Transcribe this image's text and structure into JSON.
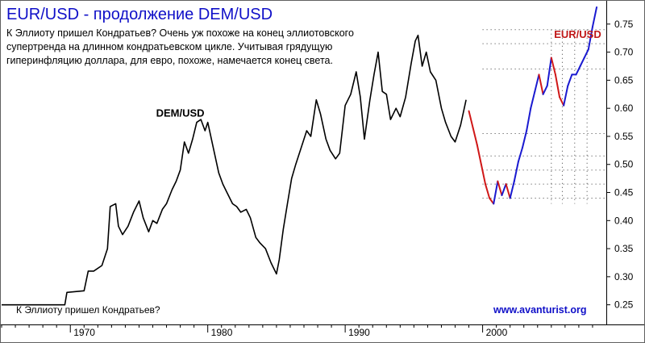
{
  "chart_data": {
    "type": "line",
    "title": "EUR/USD - продолжение DEM/USD",
    "subtitle_lines": [
      "К Эллиоту пришел Кондратьев? Очень уж похоже на конец эллиотовского",
      "супертренда на длинном кондратьевском цикле. Учитывая грядущую",
      "гиперинфляцию доллара, для евро, похоже, намечается конец света."
    ],
    "footer_text": "К Эллиоту пришел Кондратьев?",
    "source_text": "www.avanturist.org",
    "annotations": [
      {
        "text": "DEM/USD",
        "x": 1978.0,
        "y": 0.585
      },
      {
        "text": "EUR/USD",
        "x": 2005.2,
        "y": 0.725
      }
    ],
    "x_ticks": [
      {
        "label": "1970",
        "value": 1970
      },
      {
        "label": "1980",
        "value": 1980
      },
      {
        "label": "1990",
        "value": 1990
      },
      {
        "label": "2000",
        "value": 2000
      }
    ],
    "y_ticks": [
      "0.25",
      "0.30",
      "0.35",
      "0.40",
      "0.45",
      "0.50",
      "0.55",
      "0.60",
      "0.65",
      "0.70",
      "0.75"
    ],
    "xlim": [
      1965,
      2009
    ],
    "ylim": [
      0.215,
      0.79
    ],
    "grid": "dotted horizontal projection lines at the right",
    "colors": {
      "title": "#1010c8",
      "dem_series": "#000000",
      "eur_up": "#1a1ad0",
      "eur_down": "#d01818",
      "eur_label": "#c01818",
      "url": "#1010c8"
    },
    "series": [
      {
        "name": "DEM/USD",
        "x": [
          1965.0,
          1967.0,
          1969.0,
          1969.6,
          1969.75,
          1971.0,
          1971.3,
          1971.7,
          1972.3,
          1972.7,
          1972.9,
          1973.3,
          1973.5,
          1973.8,
          1974.2,
          1974.6,
          1975.0,
          1975.3,
          1975.7,
          1976.0,
          1976.3,
          1976.7,
          1977.0,
          1977.4,
          1977.7,
          1978.0,
          1978.3,
          1978.6,
          1978.9,
          1979.2,
          1979.5,
          1979.8,
          1980.0,
          1980.4,
          1980.8,
          1981.1,
          1981.4,
          1981.8,
          1982.1,
          1982.4,
          1982.8,
          1983.1,
          1983.5,
          1983.8,
          1984.2,
          1984.6,
          1985.0,
          1985.2,
          1985.5,
          1985.8,
          1986.1,
          1986.4,
          1986.8,
          1987.2,
          1987.5,
          1987.9,
          1988.2,
          1988.6,
          1988.9,
          1989.3,
          1989.6,
          1990.0,
          1990.4,
          1990.8,
          1991.1,
          1991.4,
          1991.8,
          1992.1,
          1992.4,
          1992.7,
          1993.0,
          1993.3,
          1993.7,
          1994.0,
          1994.4,
          1994.8,
          1995.1,
          1995.3,
          1995.6,
          1995.9,
          1996.2,
          1996.6,
          1997.0,
          1997.3,
          1997.7,
          1998.0,
          1998.4,
          1998.8
        ],
        "values": [
          0.25,
          0.25,
          0.25,
          0.25,
          0.272,
          0.275,
          0.31,
          0.31,
          0.32,
          0.35,
          0.425,
          0.43,
          0.39,
          0.375,
          0.39,
          0.415,
          0.435,
          0.405,
          0.38,
          0.4,
          0.395,
          0.42,
          0.43,
          0.455,
          0.47,
          0.49,
          0.54,
          0.52,
          0.545,
          0.575,
          0.58,
          0.56,
          0.575,
          0.53,
          0.485,
          0.465,
          0.45,
          0.43,
          0.425,
          0.415,
          0.42,
          0.405,
          0.37,
          0.36,
          0.35,
          0.325,
          0.305,
          0.33,
          0.385,
          0.43,
          0.475,
          0.5,
          0.53,
          0.56,
          0.55,
          0.615,
          0.59,
          0.545,
          0.525,
          0.51,
          0.52,
          0.605,
          0.625,
          0.665,
          0.62,
          0.545,
          0.615,
          0.66,
          0.7,
          0.63,
          0.625,
          0.58,
          0.6,
          0.585,
          0.62,
          0.68,
          0.72,
          0.73,
          0.675,
          0.7,
          0.665,
          0.65,
          0.6,
          0.575,
          0.55,
          0.54,
          0.57,
          0.615
        ]
      },
      {
        "name": "EUR/USD",
        "x": [
          1999.0,
          1999.3,
          1999.6,
          1999.9,
          2000.2,
          2000.5,
          2000.8,
          2001.1,
          2001.4,
          2001.7,
          2002.0,
          2002.3,
          2002.6,
          2002.9,
          2003.2,
          2003.5,
          2003.8,
          2004.1,
          2004.4,
          2004.7,
          2005.0,
          2005.3,
          2005.6,
          2005.9,
          2006.2,
          2006.5,
          2006.8,
          2007.1,
          2007.4,
          2007.7,
          2008.0,
          2008.3
        ],
        "values": [
          0.595,
          0.565,
          0.535,
          0.5,
          0.465,
          0.44,
          0.43,
          0.47,
          0.445,
          0.465,
          0.44,
          0.47,
          0.505,
          0.53,
          0.56,
          0.6,
          0.63,
          0.66,
          0.625,
          0.64,
          0.69,
          0.66,
          0.62,
          0.605,
          0.64,
          0.66,
          0.66,
          0.675,
          0.69,
          0.705,
          0.745,
          0.78
        ]
      }
    ]
  }
}
